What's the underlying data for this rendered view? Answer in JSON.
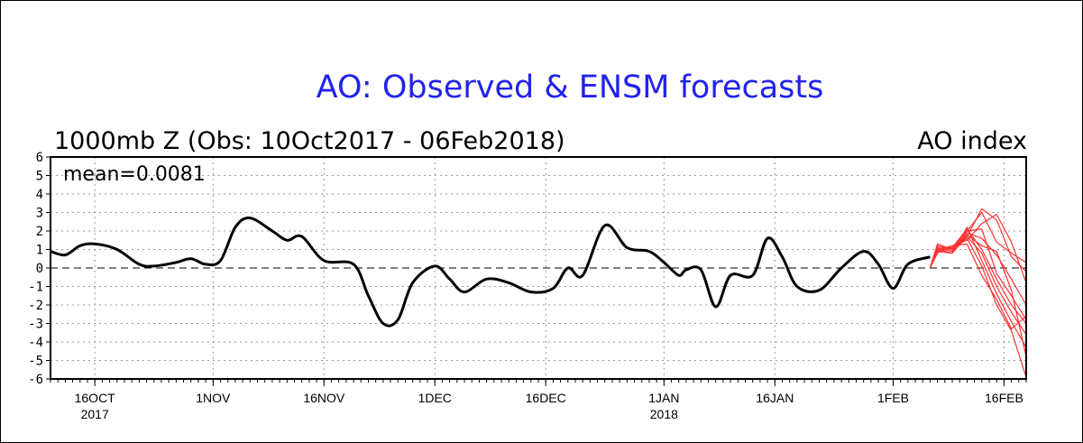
{
  "chart_data": {
    "type": "line",
    "title": "AO: Observed & ENSM forecasts",
    "subtitle_left": "1000mb Z (Obs: 10Oct2017 - 06Feb2018)",
    "subtitle_right": "AO index",
    "annotation": "mean=0.0081",
    "xlim": [
      "2017-10-10",
      "2018-02-19"
    ],
    "ylim": [
      -6,
      6
    ],
    "y_ticks": [
      6,
      5,
      4,
      3,
      2,
      1,
      0,
      -1,
      -2,
      -3,
      -4,
      -5,
      -6
    ],
    "y_tick_labels": [
      "6",
      "5",
      "4",
      "3",
      "2",
      "1",
      "0",
      "-1",
      "-2",
      "-3",
      "-4",
      "-5",
      "-6"
    ],
    "x_ticks": [
      {
        "date": "2017-10-16",
        "label": "16OCT",
        "sublabel": "2017"
      },
      {
        "date": "2017-11-01",
        "label": "1NOV",
        "sublabel": ""
      },
      {
        "date": "2017-11-16",
        "label": "16NOV",
        "sublabel": ""
      },
      {
        "date": "2017-12-01",
        "label": "1DEC",
        "sublabel": ""
      },
      {
        "date": "2017-12-16",
        "label": "16DEC",
        "sublabel": ""
      },
      {
        "date": "2018-01-01",
        "label": "1JAN",
        "sublabel": "2018"
      },
      {
        "date": "2018-01-16",
        "label": "16JAN",
        "sublabel": ""
      },
      {
        "date": "2018-02-01",
        "label": "1FEB",
        "sublabel": ""
      },
      {
        "date": "2018-02-16",
        "label": "16FEB",
        "sublabel": ""
      }
    ],
    "grid": true,
    "colors": {
      "observed": "#000000",
      "forecast": "#ff3030",
      "title": "#2222ee"
    },
    "series": [
      {
        "kind": "observed",
        "x": [
          "2017-10-10",
          "2017-10-12",
          "2017-10-14",
          "2017-10-16",
          "2017-10-19",
          "2017-10-22",
          "2017-10-24",
          "2017-10-27",
          "2017-10-29",
          "2017-10-31",
          "2017-11-02",
          "2017-11-04",
          "2017-11-06",
          "2017-11-09",
          "2017-11-11",
          "2017-11-13",
          "2017-11-16",
          "2017-11-20",
          "2017-11-22",
          "2017-11-24",
          "2017-11-26",
          "2017-11-28",
          "2017-12-01",
          "2017-12-03",
          "2017-12-05",
          "2017-12-08",
          "2017-12-11",
          "2017-12-14",
          "2017-12-17",
          "2017-12-19",
          "2017-12-21",
          "2017-12-24",
          "2017-12-27",
          "2017-12-30",
          "2018-01-01",
          "2018-01-03",
          "2018-01-04",
          "2018-01-06",
          "2018-01-08",
          "2018-01-10",
          "2018-01-13",
          "2018-01-15",
          "2018-01-17",
          "2018-01-19",
          "2018-01-22",
          "2018-01-25",
          "2018-01-28",
          "2018-01-30",
          "2018-02-01",
          "2018-02-03",
          "2018-02-06"
        ],
        "y": [
          0.9,
          0.7,
          1.2,
          1.3,
          1.0,
          0.2,
          0.1,
          0.3,
          0.5,
          0.2,
          0.4,
          2.2,
          2.7,
          2.0,
          1.5,
          1.7,
          0.4,
          0.2,
          -1.5,
          -3.0,
          -2.8,
          -0.8,
          0.1,
          -0.6,
          -1.3,
          -0.6,
          -0.8,
          -1.3,
          -1.1,
          0.0,
          -0.4,
          2.3,
          1.1,
          0.9,
          0.3,
          -0.4,
          -0.1,
          -0.1,
          -2.1,
          -0.4,
          -0.4,
          1.6,
          0.6,
          -1.0,
          -1.2,
          0.0,
          0.9,
          0.2,
          -1.1,
          0.2,
          0.6
        ]
      },
      {
        "kind": "forecast",
        "x": [
          "2018-02-06",
          "2018-02-07",
          "2018-02-09",
          "2018-02-11",
          "2018-02-13",
          "2018-02-15",
          "2018-02-17",
          "2018-02-19"
        ],
        "y": [
          0.0,
          1.0,
          0.8,
          1.7,
          3.2,
          2.6,
          0.6,
          -0.2
        ]
      },
      {
        "kind": "forecast",
        "x": [
          "2018-02-06",
          "2018-02-07",
          "2018-02-09",
          "2018-02-11",
          "2018-02-13",
          "2018-02-15",
          "2018-02-17",
          "2018-02-19"
        ],
        "y": [
          0.0,
          1.2,
          1.0,
          2.0,
          3.0,
          1.4,
          0.8,
          0.3
        ]
      },
      {
        "kind": "forecast",
        "x": [
          "2018-02-06",
          "2018-02-07",
          "2018-02-09",
          "2018-02-11",
          "2018-02-13",
          "2018-02-15",
          "2018-02-17",
          "2018-02-19"
        ],
        "y": [
          0.0,
          0.8,
          1.2,
          1.5,
          2.4,
          2.9,
          1.4,
          -0.8
        ]
      },
      {
        "kind": "forecast",
        "x": [
          "2018-02-06",
          "2018-02-07",
          "2018-02-09",
          "2018-02-11",
          "2018-02-13",
          "2018-02-15",
          "2018-02-17",
          "2018-02-19"
        ],
        "y": [
          0.0,
          1.1,
          0.9,
          1.9,
          1.6,
          0.7,
          -0.6,
          -2.0
        ]
      },
      {
        "kind": "forecast",
        "x": [
          "2018-02-06",
          "2018-02-07",
          "2018-02-09",
          "2018-02-11",
          "2018-02-13",
          "2018-02-15",
          "2018-02-17",
          "2018-02-19"
        ],
        "y": [
          0.0,
          1.0,
          1.1,
          2.1,
          1.0,
          -0.6,
          -2.0,
          -3.0
        ]
      },
      {
        "kind": "forecast",
        "x": [
          "2018-02-06",
          "2018-02-07",
          "2018-02-09",
          "2018-02-11",
          "2018-02-13",
          "2018-02-15",
          "2018-02-17",
          "2018-02-19"
        ],
        "y": [
          0.0,
          0.9,
          0.8,
          2.2,
          0.4,
          -1.4,
          -2.9,
          -4.3
        ]
      },
      {
        "kind": "forecast",
        "x": [
          "2018-02-06",
          "2018-02-07",
          "2018-02-09",
          "2018-02-11",
          "2018-02-13",
          "2018-02-15",
          "2018-02-17",
          "2018-02-19"
        ],
        "y": [
          0.0,
          1.3,
          1.0,
          1.6,
          0.1,
          -2.0,
          -3.4,
          -5.9
        ]
      },
      {
        "kind": "forecast",
        "x": [
          "2018-02-06",
          "2018-02-07",
          "2018-02-09",
          "2018-02-11",
          "2018-02-13",
          "2018-02-15",
          "2018-02-17",
          "2018-02-19"
        ],
        "y": [
          0.0,
          1.0,
          1.2,
          1.3,
          -0.4,
          -1.7,
          -3.3,
          -2.6
        ]
      },
      {
        "kind": "forecast",
        "x": [
          "2018-02-06",
          "2018-02-07",
          "2018-02-09",
          "2018-02-11",
          "2018-02-13",
          "2018-02-15",
          "2018-02-17",
          "2018-02-19"
        ],
        "y": [
          0.0,
          1.1,
          0.9,
          1.8,
          1.2,
          0.9,
          -1.2,
          -4.8
        ]
      },
      {
        "kind": "forecast",
        "x": [
          "2018-02-06",
          "2018-02-07",
          "2018-02-09",
          "2018-02-11",
          "2018-02-13",
          "2018-02-15",
          "2018-02-17",
          "2018-02-19"
        ],
        "y": [
          0.0,
          0.9,
          1.1,
          2.0,
          2.1,
          -0.3,
          -1.5,
          -2.8
        ]
      },
      {
        "kind": "forecast",
        "x": [
          "2018-02-06",
          "2018-02-07",
          "2018-02-09",
          "2018-02-11",
          "2018-02-13",
          "2018-02-15",
          "2018-02-17",
          "2018-02-19"
        ],
        "y": [
          0.0,
          1.2,
          1.0,
          1.7,
          0.8,
          -1.0,
          -2.4,
          -3.6
        ]
      }
    ]
  }
}
